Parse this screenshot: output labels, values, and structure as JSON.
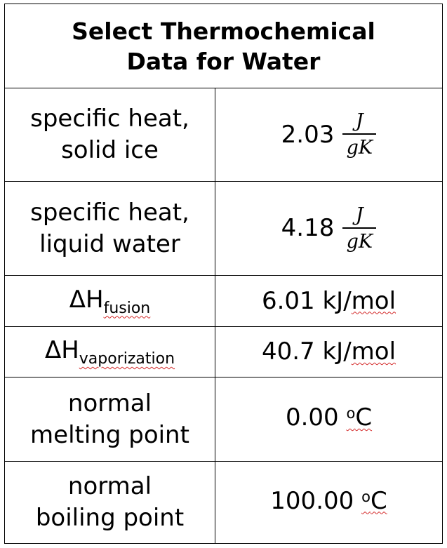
{
  "title": {
    "line1": "Select Thermochemical",
    "line2": "Data for Water"
  },
  "rows": [
    {
      "label_line1": "specific heat,",
      "label_line2": "solid ice",
      "value_number": "2.03",
      "value_unit_numerator": "J",
      "value_unit_denominator": "gK"
    },
    {
      "label_line1": "specific heat,",
      "label_line2": "liquid water",
      "value_number": "4.18",
      "value_unit_numerator": "J",
      "value_unit_denominator": "gK"
    },
    {
      "label_main": "ΔH",
      "label_sub": "fusion",
      "value_number": "6.01 kJ/",
      "value_unit": "mol"
    },
    {
      "label_main": "ΔH",
      "label_sub": "vaporization",
      "value_number": "40.7 kJ/",
      "value_unit": "mol"
    },
    {
      "label_line1": "normal",
      "label_line2": "melting point",
      "value_number": "0.00 ",
      "value_sup": "o",
      "value_unit": "C"
    },
    {
      "label_line1": "normal",
      "label_line2": "boiling point",
      "value_number": "100.00 ",
      "value_sup": "o",
      "value_unit": "C"
    }
  ],
  "colors": {
    "border": "#000000",
    "text": "#000000",
    "spellcheck_underline": "#d42a2a"
  }
}
